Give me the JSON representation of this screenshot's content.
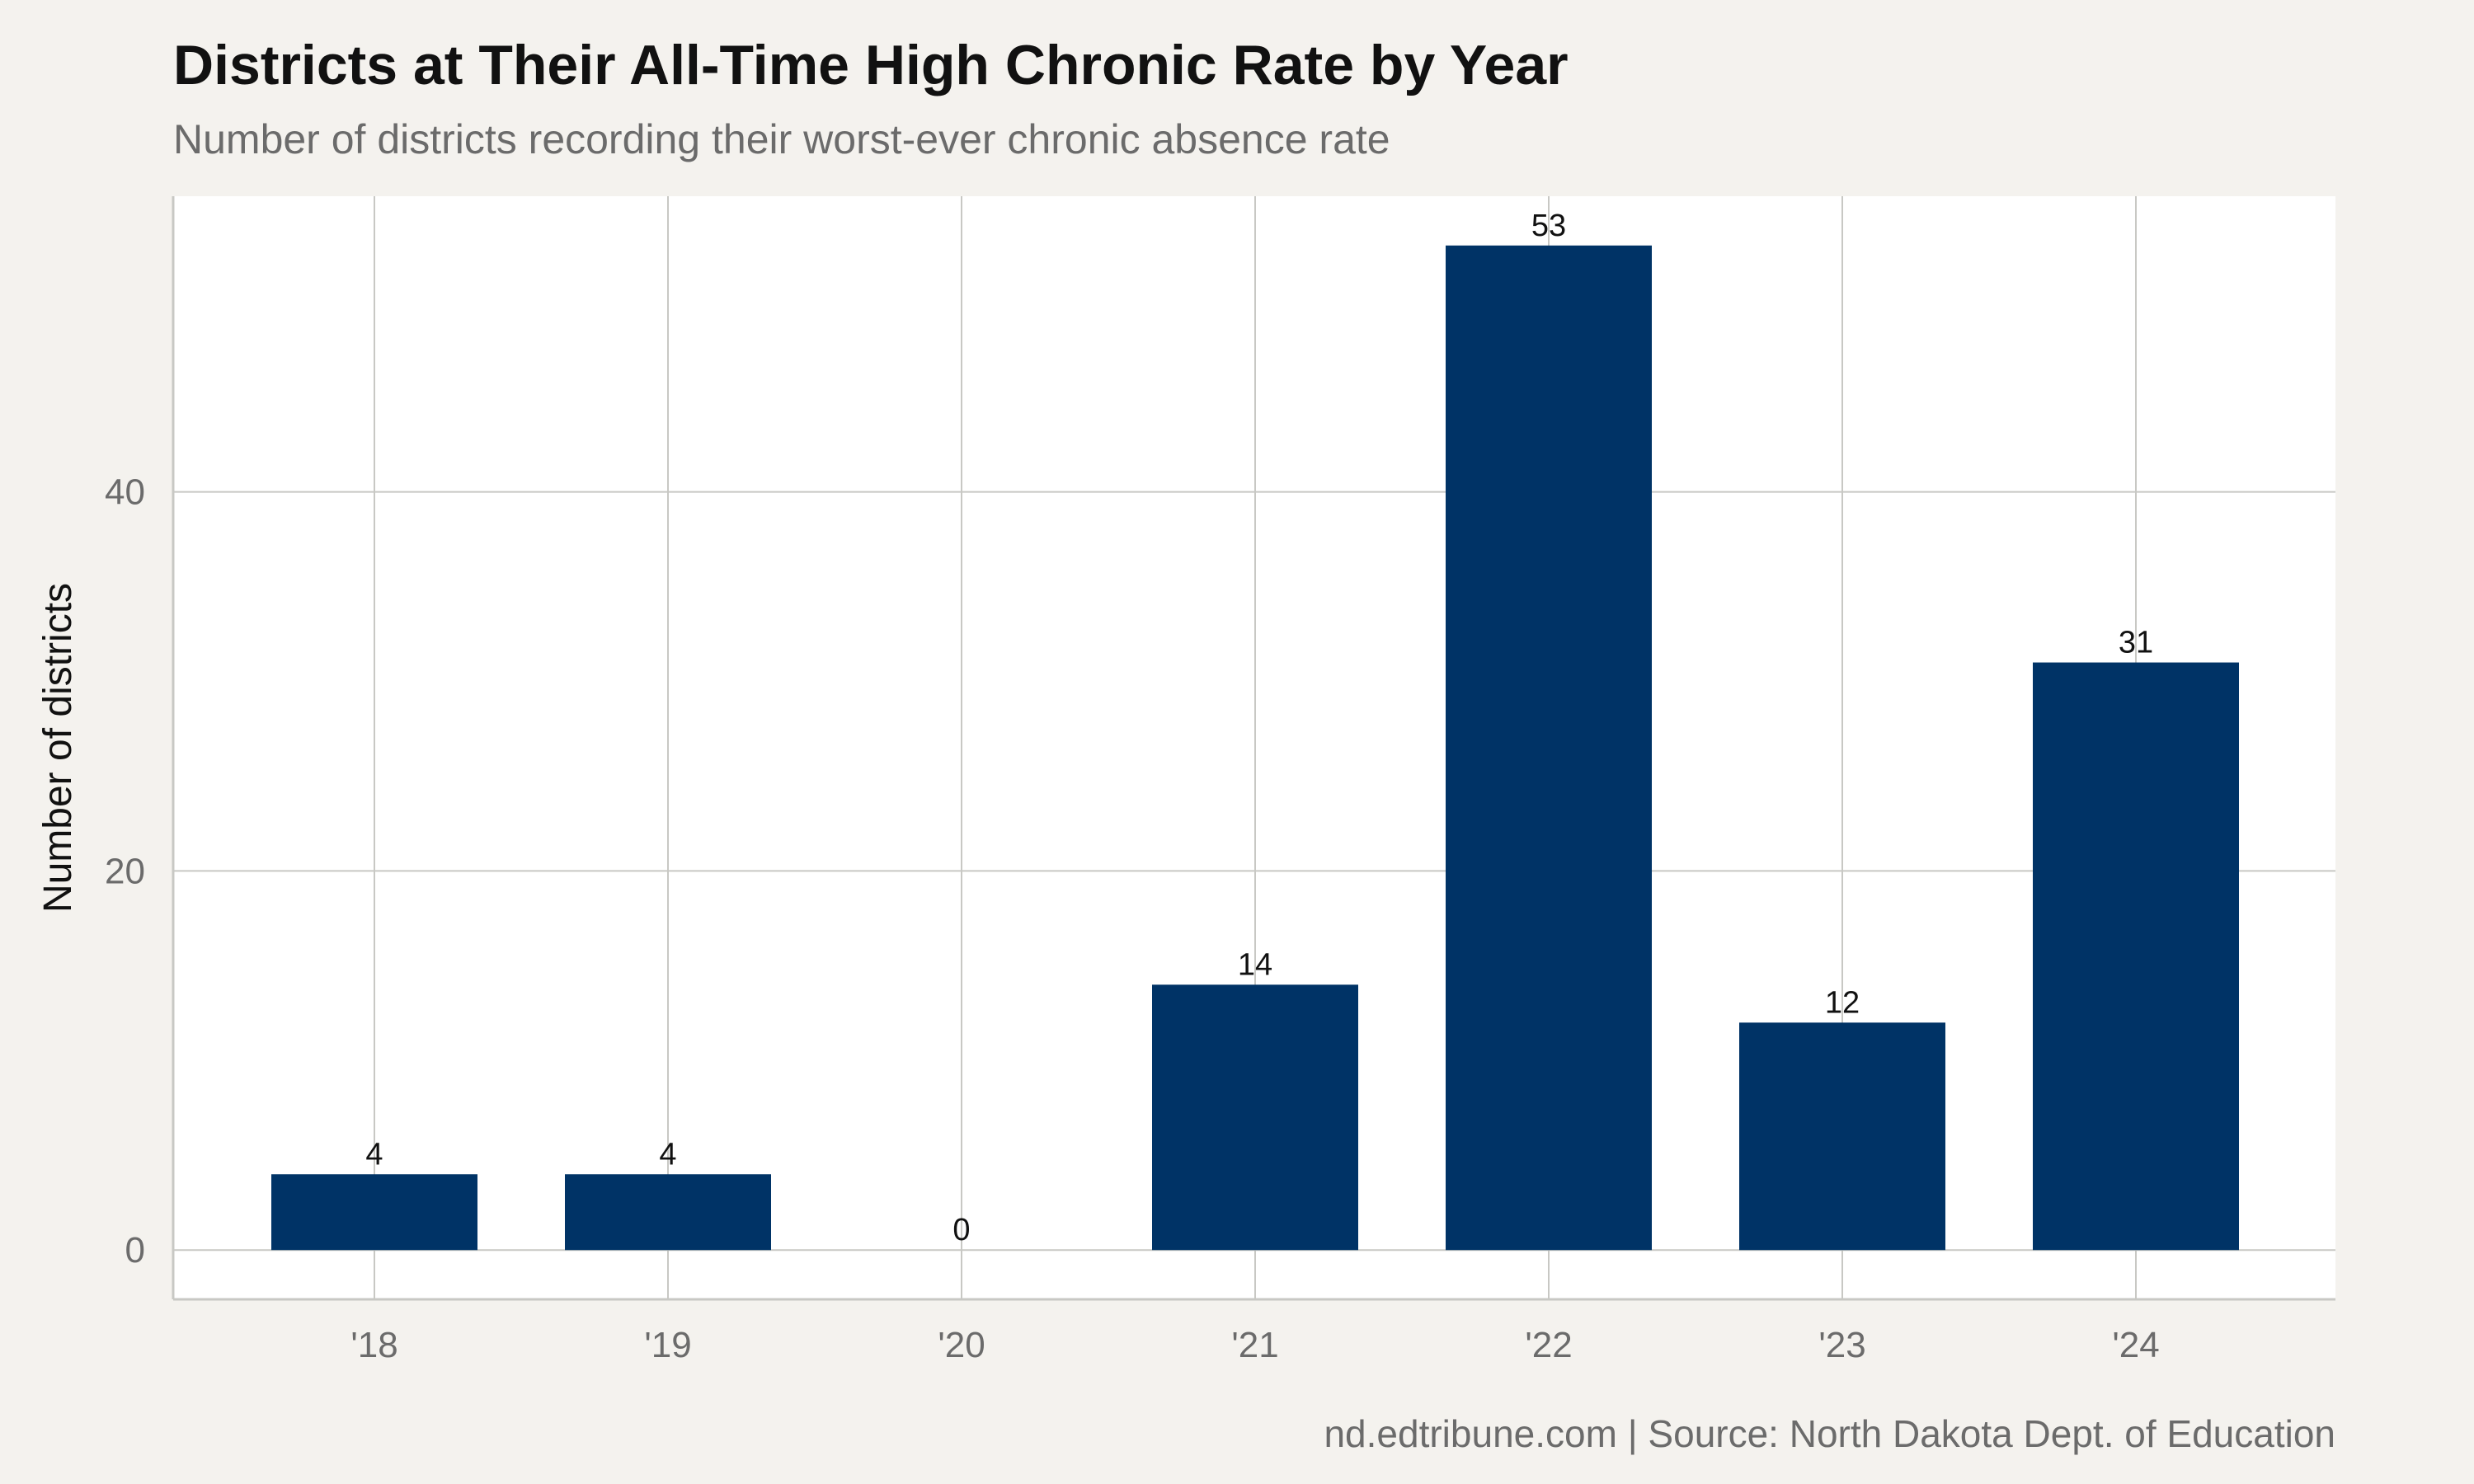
{
  "chart_data": {
    "type": "bar",
    "title": "Districts at Their All-Time High Chronic Rate by Year",
    "subtitle": "Number of districts recording their worst-ever chronic absence rate",
    "xlabel": "",
    "ylabel": "Number of districts",
    "categories": [
      "'18",
      "'19",
      "'20",
      "'21",
      "'22",
      "'23",
      "'24"
    ],
    "values": [
      4,
      4,
      0,
      14,
      53,
      12,
      31
    ],
    "ylim": [
      -2.6,
      55.6
    ],
    "yticks": [
      0,
      20,
      40
    ],
    "grid": true,
    "legend": "none",
    "caption": "nd.edtribune.com | Source: North Dakota Dept. of Education",
    "colors": {
      "bar": "#003366",
      "panel": "#ffffff",
      "background": "#f4f2ee",
      "grid": "#c8c8c4"
    }
  }
}
